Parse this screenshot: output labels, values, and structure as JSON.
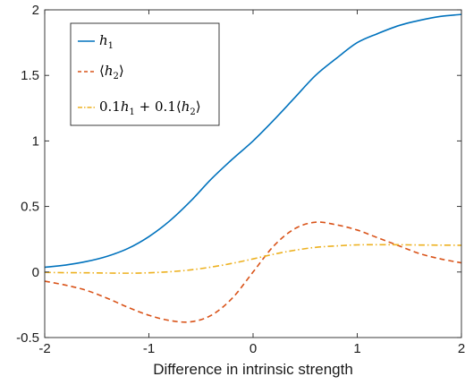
{
  "chart_data": {
    "type": "line",
    "xlabel": "Difference in intrinsic strength",
    "ylabel": "",
    "title": "",
    "xlim": [
      -2,
      2
    ],
    "ylim": [
      -0.5,
      2
    ],
    "xticks": [
      -2,
      -1,
      0,
      1,
      2
    ],
    "yticks": [
      -0.5,
      0,
      0.5,
      1,
      1.5,
      2
    ],
    "xtick_labels": [
      "-2",
      "-1",
      "0",
      "1",
      "2"
    ],
    "ytick_labels": [
      "-0.5",
      "0",
      "0.5",
      "1",
      "1.5",
      "2"
    ],
    "grid": false,
    "legend_position": "top-left",
    "x": [
      -2,
      -1.8,
      -1.6,
      -1.4,
      -1.2,
      -1,
      -0.8,
      -0.6,
      -0.4,
      -0.2,
      0,
      0.2,
      0.4,
      0.6,
      0.8,
      1,
      1.2,
      1.4,
      1.6,
      1.8,
      2
    ],
    "series": [
      {
        "name": "h1",
        "legend_main": "h",
        "legend_sub": "1",
        "color": "#0072BD",
        "dash": "solid",
        "values": [
          0.036,
          0.053,
          0.08,
          0.12,
          0.18,
          0.27,
          0.39,
          0.54,
          0.71,
          0.86,
          1.0,
          1.16,
          1.33,
          1.5,
          1.63,
          1.75,
          1.82,
          1.88,
          1.92,
          1.95,
          1.965
        ]
      },
      {
        "name": "<h2>",
        "legend_main": "h",
        "legend_sub": "2",
        "color": "#D95319",
        "dash": "dashed",
        "values": [
          -0.07,
          -0.1,
          -0.14,
          -0.2,
          -0.27,
          -0.33,
          -0.37,
          -0.38,
          -0.33,
          -0.2,
          0.0,
          0.2,
          0.33,
          0.38,
          0.36,
          0.32,
          0.26,
          0.2,
          0.14,
          0.1,
          0.07
        ]
      },
      {
        "name": "0.1h1 + 0.1<h2>",
        "legend_prefix": "0.1",
        "legend_mid": " + 0.1",
        "color": "#EDB120",
        "dash": "dashdot",
        "values": [
          -0.003,
          -0.005,
          -0.006,
          -0.008,
          -0.009,
          -0.006,
          0.002,
          0.016,
          0.038,
          0.066,
          0.1,
          0.136,
          0.166,
          0.188,
          0.199,
          0.207,
          0.208,
          0.208,
          0.206,
          0.205,
          0.204
        ]
      }
    ]
  }
}
